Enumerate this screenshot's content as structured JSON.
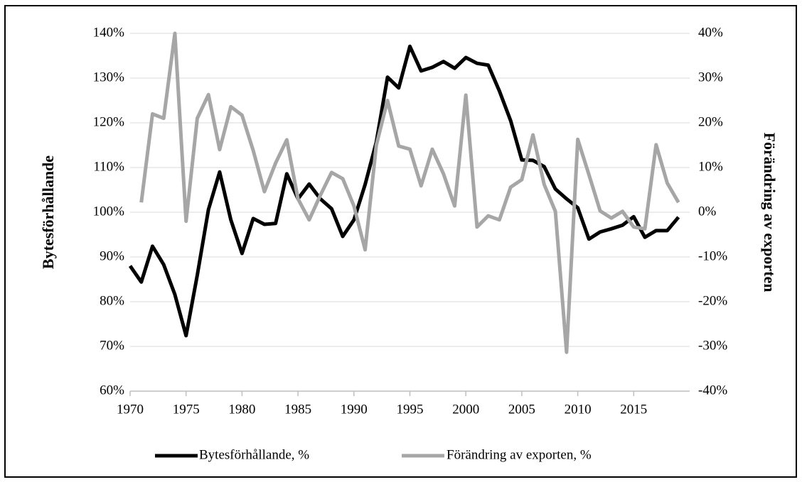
{
  "chart_data": {
    "type": "line",
    "y_label": "Bytesförhållande",
    "y2_label": "Förändring av exporten",
    "x": [
      1970,
      1971,
      1972,
      1973,
      1974,
      1975,
      1976,
      1977,
      1978,
      1979,
      1980,
      1981,
      1982,
      1983,
      1984,
      1985,
      1986,
      1987,
      1988,
      1989,
      1990,
      1991,
      1992,
      1993,
      1994,
      1995,
      1996,
      1997,
      1998,
      1999,
      2000,
      2001,
      2002,
      2003,
      2004,
      2005,
      2006,
      2007,
      2008,
      2009,
      2010,
      2011,
      2012,
      2013,
      2014,
      2015,
      2016,
      2017,
      2018,
      2019
    ],
    "xlim": [
      1970,
      2020
    ],
    "xticks": [
      1970,
      1975,
      1980,
      1985,
      1990,
      1995,
      2000,
      2005,
      2010,
      2015
    ],
    "ylim": [
      60,
      140
    ],
    "yticks": [
      {
        "value": 60,
        "label": "60%"
      },
      {
        "value": 70,
        "label": "70%"
      },
      {
        "value": 80,
        "label": "80%"
      },
      {
        "value": 90,
        "label": "90%"
      },
      {
        "value": 100,
        "label": "100%"
      },
      {
        "value": 110,
        "label": "110%"
      },
      {
        "value": 120,
        "label": "120%"
      },
      {
        "value": 130,
        "label": "130%"
      },
      {
        "value": 140,
        "label": "140%"
      }
    ],
    "y2lim": [
      -40,
      40
    ],
    "y2ticks": [
      {
        "value": -40,
        "label": "-40%"
      },
      {
        "value": -30,
        "label": "-30%"
      },
      {
        "value": -20,
        "label": "-20%"
      },
      {
        "value": -10,
        "label": "-10%"
      },
      {
        "value": 0,
        "label": "0%"
      },
      {
        "value": 10,
        "label": "10%"
      },
      {
        "value": 20,
        "label": "20%"
      },
      {
        "value": 30,
        "label": "30%"
      },
      {
        "value": 40,
        "label": "40%"
      }
    ],
    "grid": true,
    "legend": "bottom",
    "series": [
      {
        "name": "Bytesförhållande, %",
        "color": "#000000",
        "values": [
          88,
          84.4,
          92.4,
          88.3,
          81.6,
          72.4,
          85.9,
          100.6,
          109,
          98.3,
          90.8,
          98.6,
          97.3,
          97.5,
          108.6,
          103,
          106.3,
          103,
          100.8,
          94.6,
          98.3,
          106.2,
          115.7,
          130.2,
          127.8,
          137.1,
          131.6,
          132.4,
          133.7,
          132.2,
          134.6,
          133.3,
          132.9,
          127.1,
          120.5,
          111.7,
          111.6,
          110.2,
          105.2,
          103,
          101,
          94,
          95.6,
          96.3,
          97.1,
          99,
          94.4,
          95.9,
          95.9,
          98.9
        ]
      },
      {
        "name": "Förändring av exporten, %",
        "color": "#a6a6a6",
        "axis": "y2",
        "values": [
          null,
          2.2,
          22,
          21,
          40,
          -2,
          21,
          26.3,
          14,
          23.6,
          21.7,
          13.8,
          4.6,
          11,
          16.2,
          3,
          -1.7,
          3.8,
          8.9,
          7.5,
          1.4,
          -8.4,
          15,
          25,
          14.8,
          14.1,
          5.9,
          14.1,
          8.6,
          1.4,
          26.2,
          -3.3,
          -0.8,
          -1.7,
          5.6,
          7.3,
          17.3,
          6.2,
          0.2,
          -31.3,
          16.3,
          8.4,
          0.3,
          -1.3,
          0.2,
          -3.3,
          -3.7,
          15.1,
          6.5,
          2.2
        ]
      }
    ]
  }
}
